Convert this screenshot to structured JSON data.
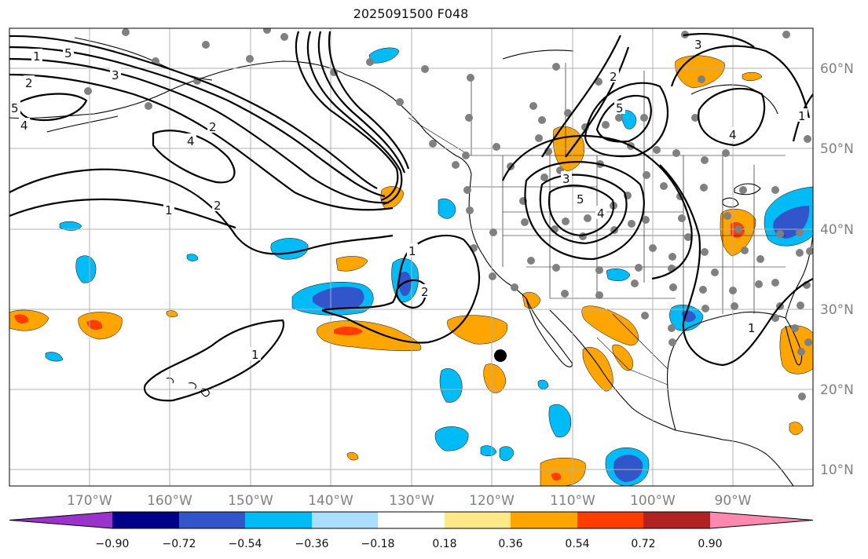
{
  "title": "2025091500 F048",
  "longitude_labels": [
    "170°W",
    "160°W",
    "150°W",
    "140°W",
    "130°W",
    "120°W",
    "110°W",
    "100°W",
    "90°W"
  ],
  "latitude_labels": [
    "60°N",
    "50°N",
    "40°N",
    "30°N",
    "20°N",
    "10°N"
  ],
  "colorbar": {
    "tick_labels": [
      "−0.90",
      "−0.72",
      "−0.54",
      "−0.36",
      "−0.18",
      "0.18",
      "0.36",
      "0.54",
      "0.72",
      "0.90"
    ],
    "colors": [
      "#9933cc",
      "#000088",
      "#3355cc",
      "#00bbf5",
      "#aaddff",
      "#ffffff",
      "#ffe887",
      "#ffa500",
      "#ff3d00",
      "#b22222",
      "#ff88b0"
    ]
  },
  "contour_labels": [
    "1",
    "2",
    "3",
    "4",
    "5",
    "1",
    "2",
    "4",
    "5",
    "3",
    "2",
    "1",
    "2",
    "4",
    "5",
    "1",
    "3",
    "4",
    "5",
    "2",
    "1",
    "1"
  ],
  "shading_colors": {
    "light_blue": "#00bbf5",
    "dark_blue": "#3355cc",
    "orange": "#ffa500",
    "red": "#ff3d00",
    "yellow": "#ffe887"
  },
  "station_color": "#808080",
  "marker_color": "#000000"
}
